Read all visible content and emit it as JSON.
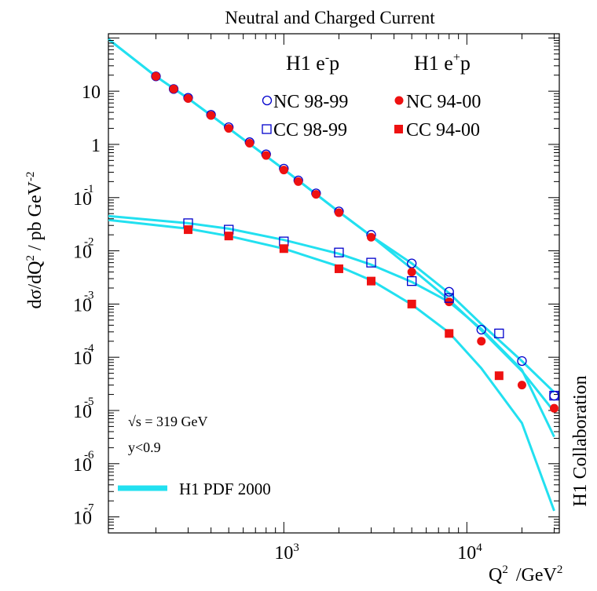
{
  "chart_data": {
    "type": "scatter",
    "title": "Neutral and Charged Current",
    "xlabel": "Q",
    "xlabel_sup": "2",
    "xlabel_unit": "/GeV",
    "xlabel_unit_sup": "2",
    "ylabel": "dσ/dQ",
    "ylabel_sup": "2",
    "ylabel_mid": " / pb GeV",
    "ylabel_sup2": "-2",
    "x_scale": "log",
    "y_scale": "log",
    "xlim": [
      110,
      32000
    ],
    "ylim": [
      5e-08,
      120
    ],
    "x_ticks": [
      {
        "base": "10",
        "exp": "3",
        "value": 1000
      },
      {
        "base": "10",
        "exp": "4",
        "value": 10000
      }
    ],
    "y_ticks": [
      {
        "base": "10",
        "exp": "",
        "value": 10
      },
      {
        "base": "1",
        "exp": "",
        "value": 1
      },
      {
        "base": "10",
        "exp": "-1",
        "value": 0.1
      },
      {
        "base": "10",
        "exp": "-2",
        "value": 0.01
      },
      {
        "base": "10",
        "exp": "-3",
        "value": 0.001
      },
      {
        "base": "10",
        "exp": "-4",
        "value": 0.0001
      },
      {
        "base": "10",
        "exp": "-5",
        "value": 1e-05
      },
      {
        "base": "10",
        "exp": "-6",
        "value": 1e-06
      },
      {
        "base": "10",
        "exp": "-7",
        "value": 1e-07
      }
    ],
    "legend": {
      "col1_title": "H1 e",
      "col1_title_sup": "-",
      "col1_title_end": "p",
      "col2_title": "H1 e",
      "col2_title_sup": "+",
      "col2_title_end": "p"
    },
    "series": [
      {
        "name": "NC 98-99",
        "marker": "open-circle",
        "color": "#0000cc",
        "points": [
          [
            200,
            19.0
          ],
          [
            250,
            11.0
          ],
          [
            300,
            7.5
          ],
          [
            400,
            3.6
          ],
          [
            500,
            2.1
          ],
          [
            650,
            1.1
          ],
          [
            800,
            0.65
          ],
          [
            1000,
            0.35
          ],
          [
            1200,
            0.21
          ],
          [
            1500,
            0.12
          ],
          [
            2000,
            0.055
          ],
          [
            3000,
            0.02
          ],
          [
            5000,
            0.0058
          ],
          [
            8000,
            0.0017
          ],
          [
            12000,
            0.00033
          ],
          [
            20000,
            8.5e-05
          ],
          [
            30000,
            1.9e-05
          ]
        ]
      },
      {
        "name": "NC 94-00",
        "marker": "filled-circle",
        "color": "#ee1111",
        "points": [
          [
            200,
            19.0
          ],
          [
            250,
            11.0
          ],
          [
            300,
            7.3
          ],
          [
            400,
            3.5
          ],
          [
            500,
            2.0
          ],
          [
            650,
            1.05
          ],
          [
            800,
            0.62
          ],
          [
            1000,
            0.33
          ],
          [
            1200,
            0.2
          ],
          [
            1500,
            0.115
          ],
          [
            2000,
            0.052
          ],
          [
            3000,
            0.018
          ],
          [
            5000,
            0.004
          ],
          [
            8000,
            0.0011
          ],
          [
            12000,
            0.0002
          ],
          [
            20000,
            3e-05
          ],
          [
            30000,
            1.1e-05
          ]
        ]
      },
      {
        "name": "CC 98-99",
        "marker": "open-square",
        "color": "#0000cc",
        "points": [
          [
            300,
            0.033
          ],
          [
            500,
            0.025
          ],
          [
            1000,
            0.015
          ],
          [
            2000,
            0.0093
          ],
          [
            3000,
            0.006
          ],
          [
            5000,
            0.0027
          ],
          [
            8000,
            0.0013
          ],
          [
            15000,
            0.00028
          ],
          [
            30000,
            1.9e-05
          ]
        ]
      },
      {
        "name": "CC 94-00",
        "marker": "filled-square",
        "color": "#ee1111",
        "points": [
          [
            300,
            0.025
          ],
          [
            500,
            0.019
          ],
          [
            1000,
            0.011
          ],
          [
            2000,
            0.0046
          ],
          [
            3000,
            0.0027
          ],
          [
            5000,
            0.001
          ],
          [
            8000,
            0.00028
          ],
          [
            15000,
            4.5e-05
          ]
        ]
      }
    ],
    "fit_label": "H1 PDF 2000",
    "fit_color": "#22e0f0",
    "annotations": {
      "sqrt_s": "√s = 319 GeV",
      "ycut": "y<0.9"
    },
    "side_label": "H1 Collaboration"
  }
}
